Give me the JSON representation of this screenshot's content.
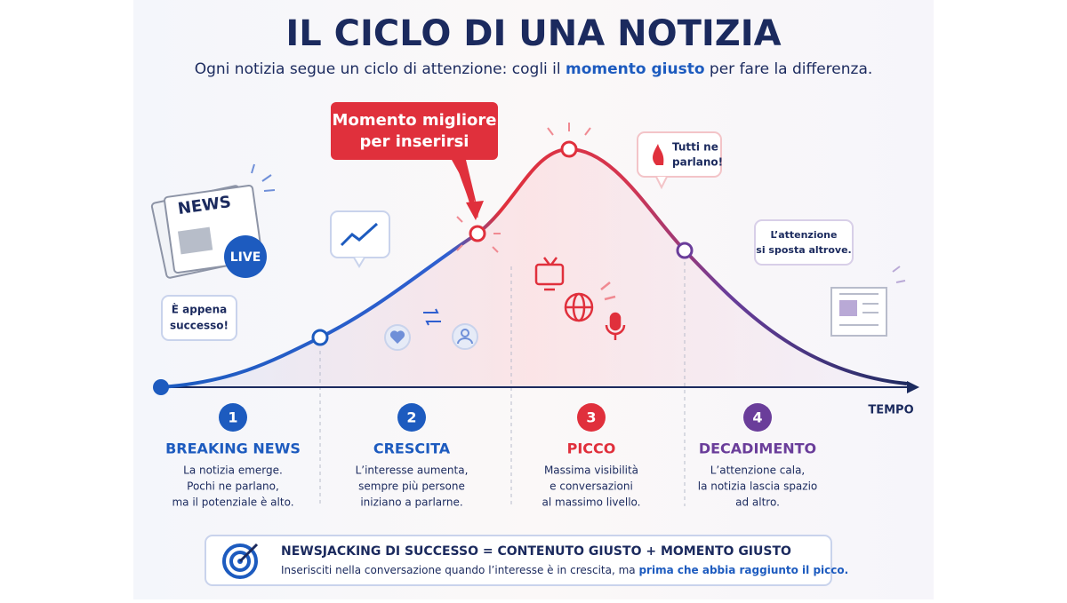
{
  "header": {
    "title": "IL CICLO DI UNA NOTIZIA",
    "subtitle": {
      "before": "Ogni notizia segue un ciclo di attenzione: cogli il ",
      "highlight": "momento giusto",
      "after": " per fare la differenza."
    }
  },
  "callout": {
    "lines": [
      "Momento migliore",
      "per inserirsi"
    ]
  },
  "icons": {
    "news": "NEWS",
    "live": "LIVE"
  },
  "bubbles": [
    {
      "lines": [
        "È appena",
        "successo!"
      ]
    },
    {
      "lines": [
        "Tutti ne",
        "parlano!"
      ]
    },
    {
      "lines": [
        "L’attenzione",
        "si sposta altrove."
      ]
    }
  ],
  "axis_label": "TEMPO",
  "phases": [
    {
      "number": "1",
      "title": "BREAKING NEWS",
      "description": [
        "La notizia emerge.",
        "Pochi ne parlano,",
        "ma il potenziale è alto."
      ]
    },
    {
      "number": "2",
      "title": "CRESCITA",
      "description": [
        "L’interesse aumenta,",
        "sempre più persone",
        "iniziano a parlarne."
      ]
    },
    {
      "number": "3",
      "title": "PICCO",
      "description": [
        "Massima visibilità",
        "e conversazioni",
        "al massimo livello."
      ]
    },
    {
      "number": "4",
      "title": "DECADIMENTO",
      "description": [
        "L’attenzione cala,",
        "la notizia lascia spazio",
        "ad altro."
      ]
    }
  ],
  "footer": {
    "heading": "NEWSJACKING DI SUCCESSO = CONTENUTO GIUSTO + MOMENTO GIUSTO",
    "text_before": "Inserisciti nella conversazione quando l’interesse è in crescita, ma ",
    "highlight": "prima che abbia raggiunto il picco."
  }
}
